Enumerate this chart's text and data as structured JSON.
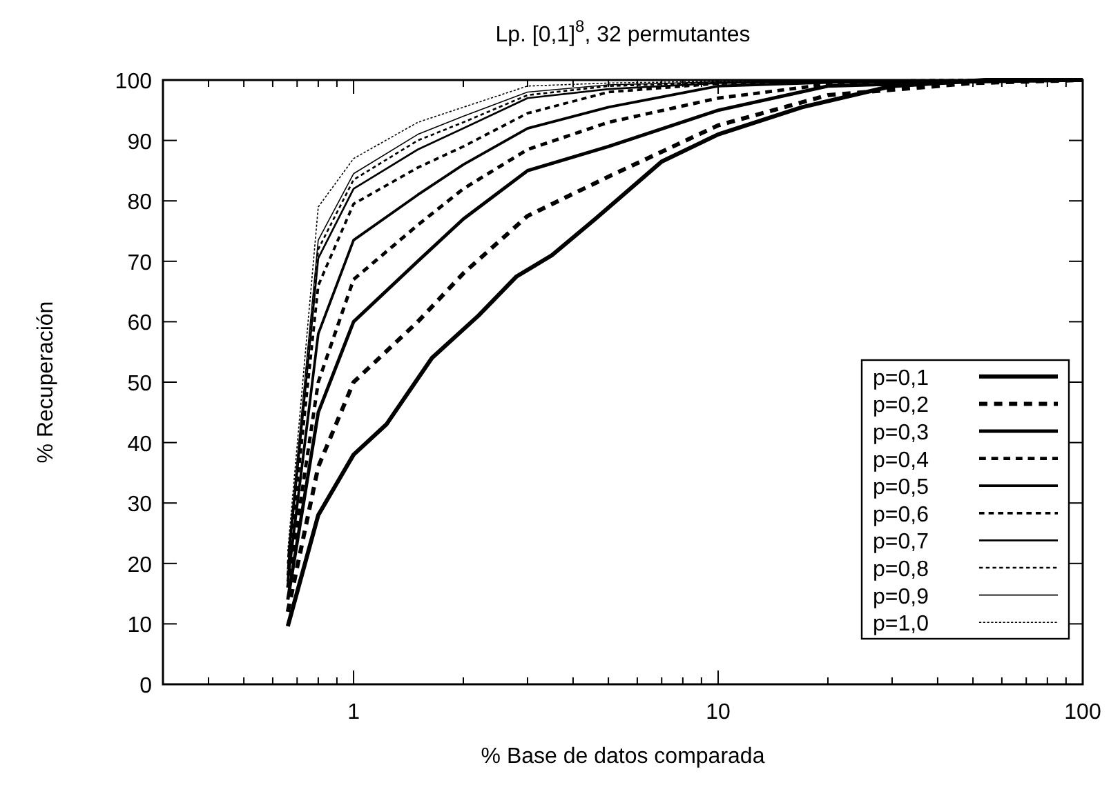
{
  "chart_data": {
    "type": "line",
    "title": "Lp. [0,1]$^{8}$, 32 permutantes",
    "xlabel": "% Base de datos comparada",
    "ylabel": "% Recuperación",
    "log": "x",
    "xlim": [
      0.3,
      100
    ],
    "ylim": [
      0,
      100
    ],
    "xticks": [
      {
        "value": 0.4,
        "label": null
      },
      {
        "value": 0.5,
        "label": null
      },
      {
        "value": 0.6,
        "label": null
      },
      {
        "value": 0.7,
        "label": null
      },
      {
        "value": 0.8,
        "label": null
      },
      {
        "value": 0.9,
        "label": null
      },
      1,
      {
        "value": 2,
        "label": null
      },
      {
        "value": 3,
        "label": null
      },
      {
        "value": 4,
        "label": null
      },
      {
        "value": 5,
        "label": null
      },
      {
        "value": 6,
        "label": null
      },
      {
        "value": 7,
        "label": null
      },
      {
        "value": 8,
        "label": null
      },
      {
        "value": 9,
        "label": null
      },
      10,
      {
        "value": 20,
        "label": null
      },
      {
        "value": 30,
        "label": null
      },
      {
        "value": 40,
        "label": null
      },
      {
        "value": 50,
        "label": null
      },
      {
        "value": 60,
        "label": null
      },
      {
        "value": 70,
        "label": null
      },
      {
        "value": 80,
        "label": null
      },
      {
        "value": 90,
        "label": null
      },
      100
    ],
    "yticks": [
      0,
      10,
      20,
      30,
      40,
      50,
      60,
      70,
      80,
      90,
      100
    ],
    "x": [
      0.66,
      0.8,
      1,
      1.5,
      2,
      3,
      5,
      10,
      20,
      50,
      100
    ],
    "grid": false,
    "legend": "right",
    "marker": "none",
    "series": [
      {
        "name": "p=0,1",
        "color": "#000000",
        "line_style": "solid",
        "x": [
          0.66,
          0.8,
          1,
          1.23,
          1.64,
          2.2,
          2.8,
          3.5,
          4.6,
          7,
          10,
          17,
          30,
          54,
          100
        ],
        "values": [
          9.6,
          28,
          38,
          43,
          54,
          61,
          67.5,
          71,
          77,
          86.5,
          91,
          95.5,
          99,
          100,
          100
        ]
      },
      {
        "name": "p=0,2",
        "color": "#000000",
        "line_style": "dashed",
        "values": [
          12,
          36,
          50,
          60,
          68,
          77.5,
          84,
          92.5,
          97.5,
          99.5,
          100
        ]
      },
      {
        "name": "p=0,3",
        "color": "#000000",
        "line_style": "solid",
        "values": [
          14,
          45,
          60,
          70,
          77,
          85,
          89,
          95,
          99,
          99.7,
          100
        ]
      },
      {
        "name": "p=0,4",
        "color": "#000000",
        "line_style": "dashed",
        "values": [
          16,
          50,
          67,
          76,
          82,
          88.5,
          93,
          97,
          99.3,
          99.8,
          100
        ]
      },
      {
        "name": "p=0,5",
        "color": "#000000",
        "line_style": "solid",
        "values": [
          17,
          58,
          73.5,
          81,
          86,
          92,
          95.5,
          99,
          99.6,
          99.9,
          100
        ]
      },
      {
        "name": "p=0,6",
        "color": "#000000",
        "line_style": "dashed",
        "values": [
          18,
          66,
          79.5,
          85.5,
          89,
          94.5,
          98,
          99.4,
          99.8,
          100,
          100
        ]
      },
      {
        "name": "p=0,7",
        "color": "#000000",
        "line_style": "solid",
        "values": [
          19,
          70.5,
          82,
          88.5,
          92,
          97,
          98.5,
          99.5,
          99.8,
          100,
          100
        ]
      },
      {
        "name": "p=0,8",
        "color": "#000000",
        "line_style": "dashed",
        "values": [
          20,
          72,
          83.5,
          90,
          93,
          97.5,
          99,
          99.6,
          99.9,
          100,
          100
        ]
      },
      {
        "name": "p=0,9",
        "color": "#000000",
        "line_style": "solid",
        "values": [
          21,
          73.5,
          84.5,
          91,
          94,
          98,
          99.2,
          99.7,
          99.9,
          100,
          100
        ]
      },
      {
        "name": "p=1,0",
        "color": "#000000",
        "line_style": "dashed",
        "values": [
          22,
          79,
          87,
          93,
          95.5,
          99,
          99.5,
          99.8,
          100,
          100,
          100
        ]
      }
    ]
  }
}
